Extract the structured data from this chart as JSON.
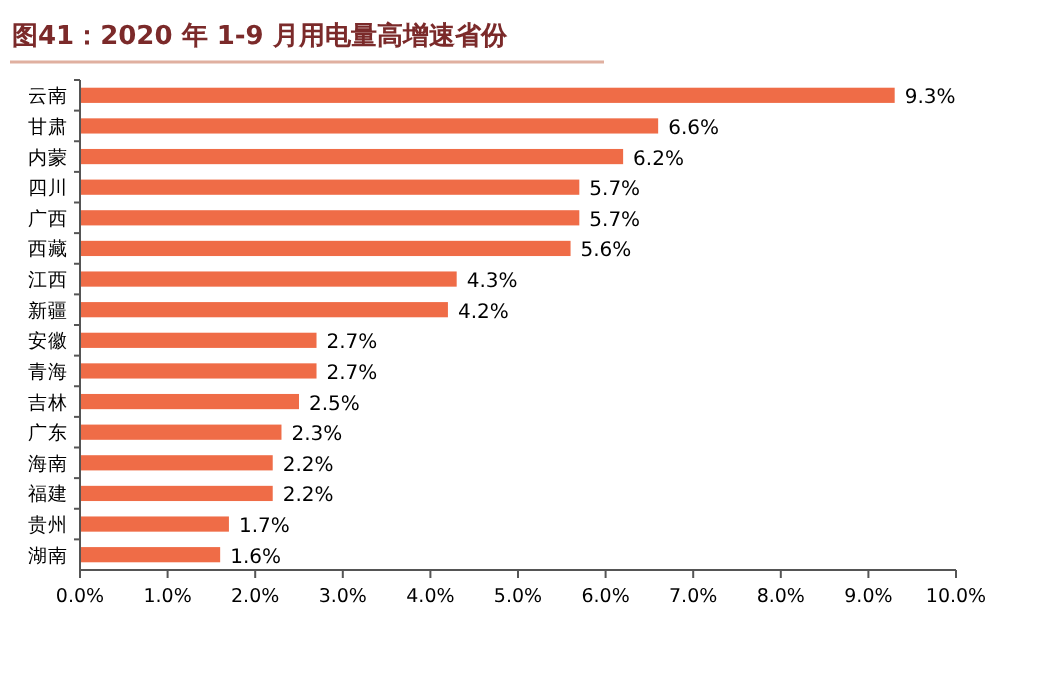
{
  "chart_data": {
    "type": "bar",
    "orientation": "horizontal",
    "title": "图41：2020 年 1-9 月用电量高增速省份",
    "categories": [
      "云南",
      "甘肃",
      "内蒙",
      "四川",
      "广西",
      "西藏",
      "江西",
      "新疆",
      "安徽",
      "青海",
      "吉林",
      "广东",
      "海南",
      "福建",
      "贵州",
      "湖南"
    ],
    "values": [
      9.3,
      6.6,
      6.2,
      5.7,
      5.7,
      5.6,
      4.3,
      4.2,
      2.7,
      2.7,
      2.5,
      2.3,
      2.2,
      2.2,
      1.7,
      1.6
    ],
    "value_labels": [
      "9.3%",
      "6.6%",
      "6.2%",
      "5.7%",
      "5.7%",
      "5.6%",
      "4.3%",
      "4.2%",
      "2.7%",
      "2.7%",
      "2.5%",
      "2.3%",
      "2.2%",
      "2.2%",
      "1.7%",
      "1.6%"
    ],
    "color": "#ef6c47",
    "xlim": [
      0,
      10
    ],
    "xticks": [
      {
        "value": 0,
        "label": "0.0%"
      },
      {
        "value": 1,
        "label": "1.0%"
      },
      {
        "value": 2,
        "label": "2.0%"
      },
      {
        "value": 3,
        "label": "3.0%"
      },
      {
        "value": 4,
        "label": "4.0%"
      },
      {
        "value": 5,
        "label": "5.0%"
      },
      {
        "value": 6,
        "label": "6.0%"
      },
      {
        "value": 7,
        "label": "7.0%"
      },
      {
        "value": 8,
        "label": "8.0%"
      },
      {
        "value": 9,
        "label": "9.0%"
      },
      {
        "value": 10,
        "label": "10.0%"
      }
    ],
    "grid": false
  }
}
